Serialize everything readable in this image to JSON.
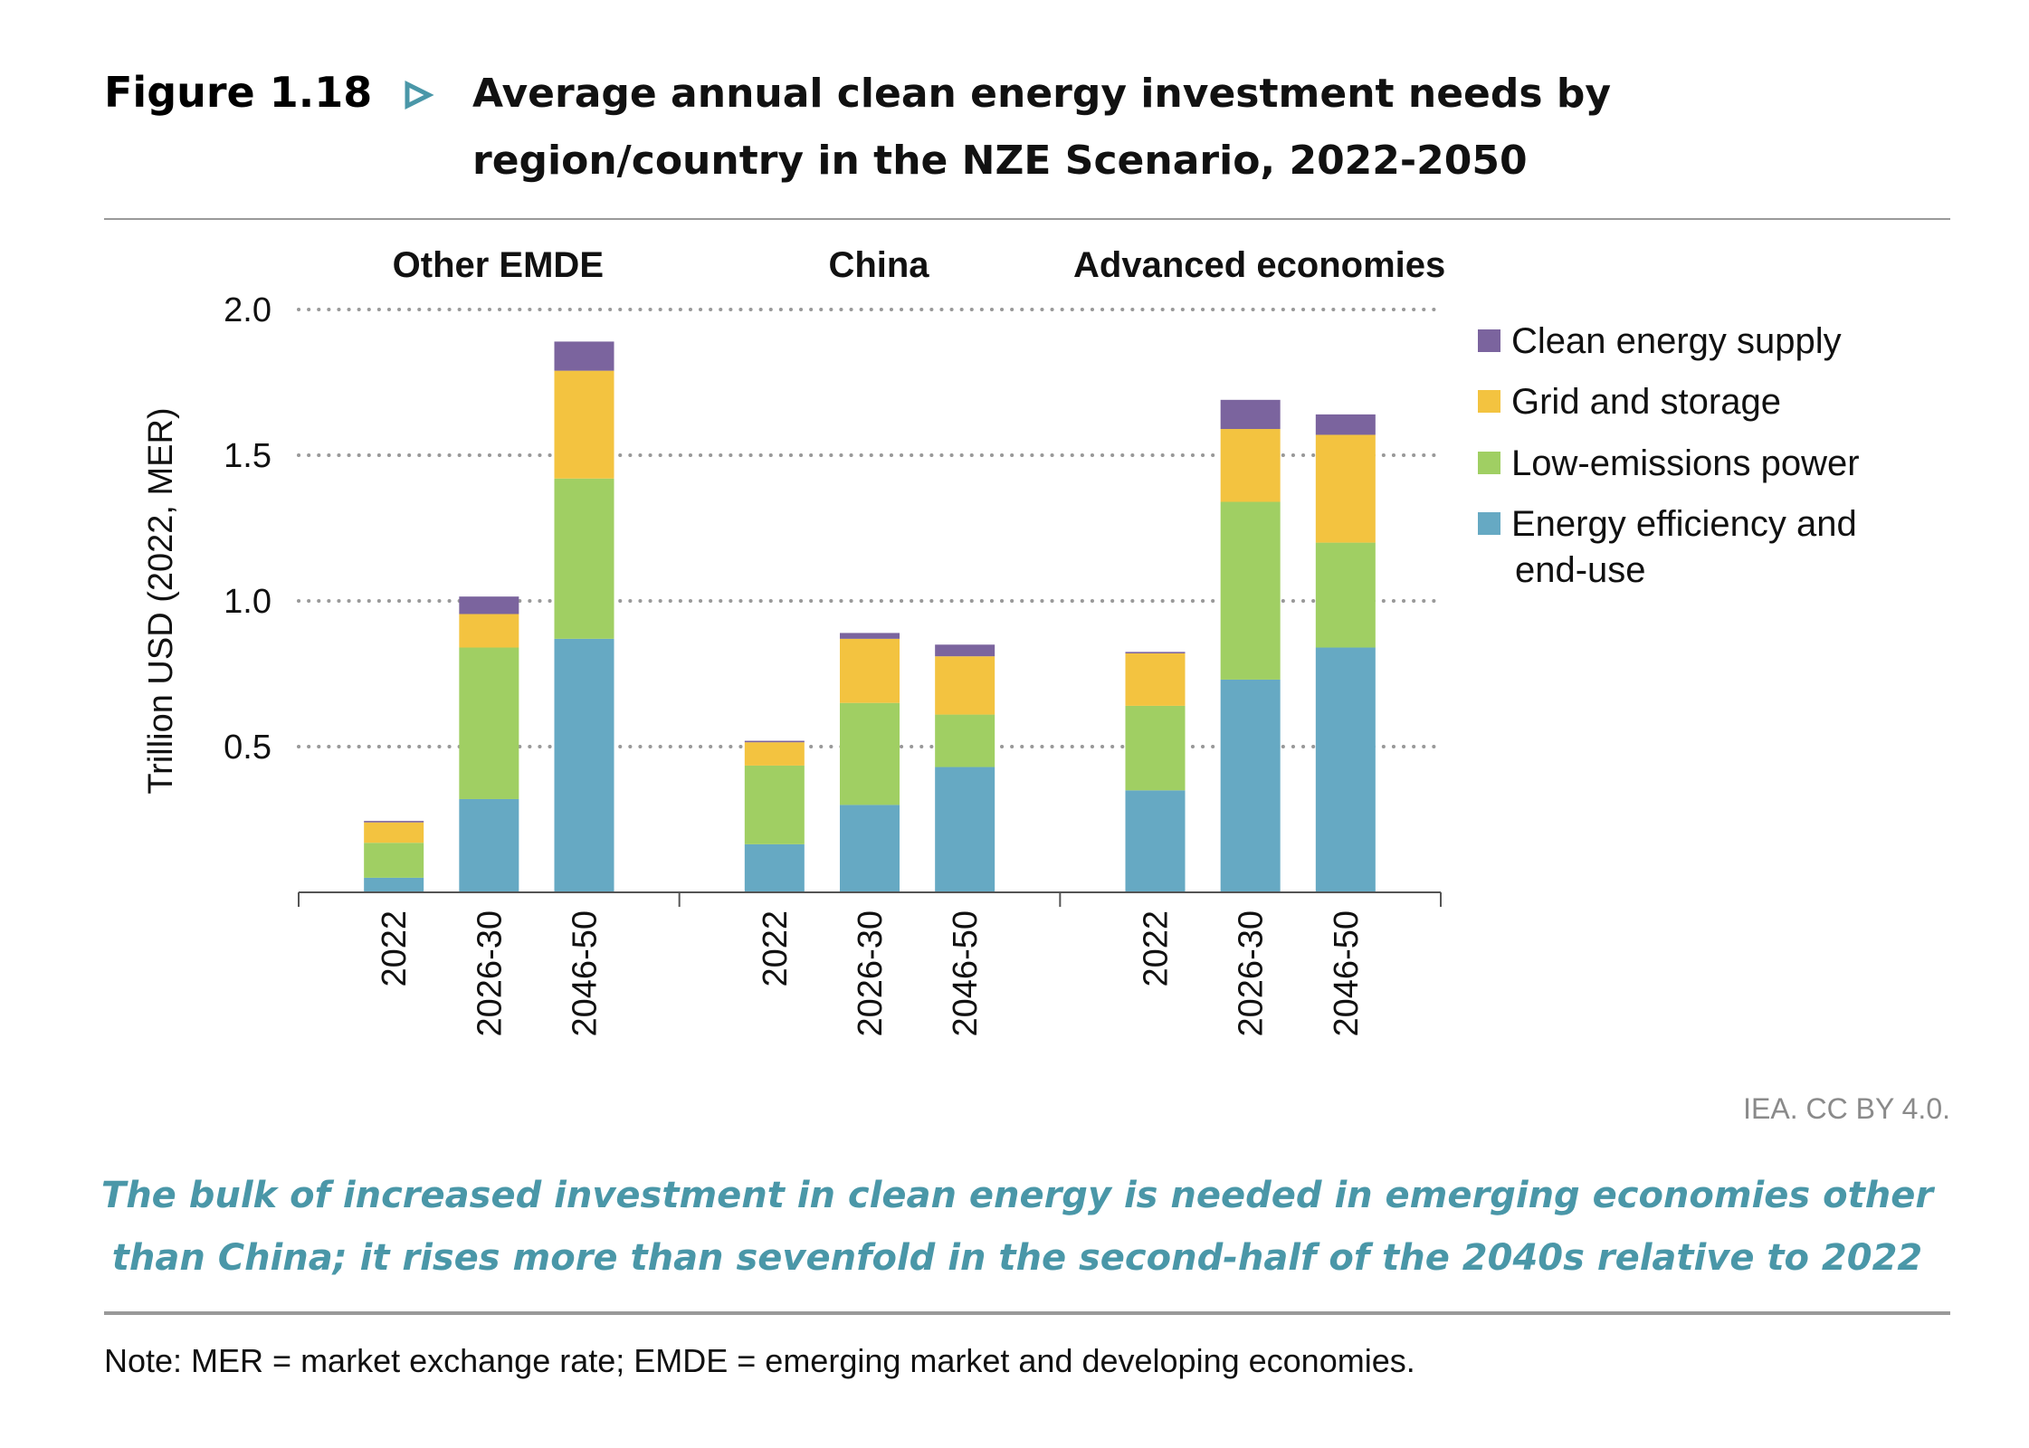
{
  "header": {
    "figure_label": "Figure 1.18",
    "title_line1": "Average annual clean energy investment needs by",
    "title_line2": "region/country in the NZE Scenario, 2022-2050",
    "accent_color": "#4a97a8"
  },
  "chart_data": {
    "type": "bar",
    "stacked": true,
    "ylabel": "Trillion USD (2022, MER)",
    "ylim": [
      0,
      2.0
    ],
    "yticks": [
      "0.5",
      "1.0",
      "1.5",
      "2.0"
    ],
    "grid": "horizontal dotted",
    "legend_position": "right",
    "groups": [
      {
        "name": "Other EMDE",
        "categories": [
          "2022",
          "2026-30",
          "2046-50"
        ]
      },
      {
        "name": "China",
        "categories": [
          "2022",
          "2026-30",
          "2046-50"
        ]
      },
      {
        "name": "Advanced economies",
        "categories": [
          "2022",
          "2026-30",
          "2046-50"
        ]
      }
    ],
    "series": [
      {
        "name": "Energy efficiency and end-use",
        "color": "#66a9c3",
        "values": [
          0.05,
          0.32,
          0.87,
          0.165,
          0.3,
          0.43,
          0.35,
          0.73,
          0.84
        ]
      },
      {
        "name": "Low-emissions power",
        "color": "#a0cf63",
        "values": [
          0.12,
          0.52,
          0.55,
          0.27,
          0.35,
          0.18,
          0.29,
          0.61,
          0.36
        ]
      },
      {
        "name": "Grid and storage",
        "color": "#f3c340",
        "values": [
          0.07,
          0.115,
          0.37,
          0.08,
          0.22,
          0.2,
          0.18,
          0.25,
          0.37
        ]
      },
      {
        "name": "Clean energy supply",
        "color": "#7b649e",
        "values": [
          0.005,
          0.06,
          0.1,
          0.005,
          0.02,
          0.04,
          0.005,
          0.1,
          0.07
        ]
      }
    ],
    "legend": {
      "items": [
        {
          "label": "Clean energy supply",
          "color": "#7b649e"
        },
        {
          "label": "Grid and storage",
          "color": "#f3c340"
        },
        {
          "label": "Low-emissions power",
          "color": "#a0cf63"
        },
        {
          "label_line1": "Energy efficiency and",
          "label_line2": "end-use",
          "color": "#66a9c3"
        }
      ]
    }
  },
  "source": "IEA. CC BY 4.0.",
  "caption_line1": "The bulk of increased investment in clean energy is needed in emerging economies other",
  "caption_line2": "than China; it rises more than sevenfold in the second-half of the 2040s relative to 2022",
  "note": "Note: MER = market exchange rate; EMDE = emerging market and developing economies."
}
